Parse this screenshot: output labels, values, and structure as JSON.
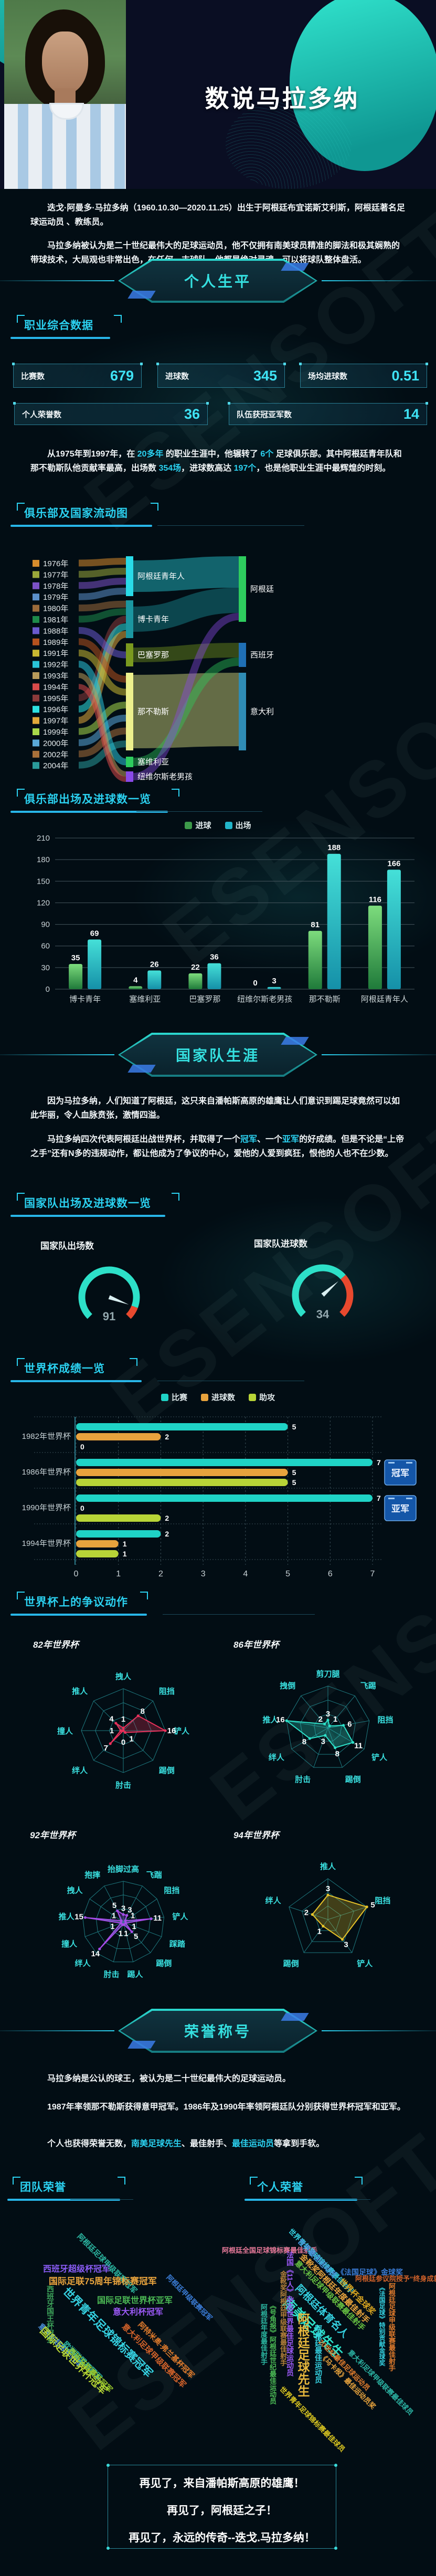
{
  "watermark": "ESENSOFT",
  "header": {
    "title": "数说马拉多纳"
  },
  "intro": {
    "p1": "迭戈·阿曼多·马拉多纳（1960.10.30—2020.11.25）出生于阿根廷布宜诺斯艾利斯，阿根廷著名足球运动员 、教练员。",
    "p2": "马拉多纳被认为是二十世纪最伟大的足球运动员，他不仅拥有南美球员精准的脚法和极其娴熟的带球技术，大局观也非常出色，在任何一支球队，他都是绝对灵魂，可以将球队整体盘活。"
  },
  "banners": {
    "personal": "个人生平",
    "national": "国家队生涯",
    "honors": "荣誉称号"
  },
  "sections": {
    "career_stats": "职业综合数据",
    "flow": "俱乐部及国家流动图",
    "club_chart": "俱乐部出场及进球数一览",
    "national_chart": "国家队出场及进球数一览",
    "worldcup_chart": "世界杯成绩一览",
    "fouls_chart": "世界杯上的争议动作",
    "team_honors": "团队荣誉",
    "personal_honors": "个人荣誉"
  },
  "stat_cards": [
    {
      "label": "比赛数",
      "value": "679"
    },
    {
      "label": "进球数",
      "value": "345"
    },
    {
      "label": "场均进球数",
      "value": "0.51"
    },
    {
      "label": "个人荣誉数",
      "value": "36"
    },
    {
      "label": "队伍获冠亚军数",
      "value": "14"
    }
  ],
  "career_text": {
    "s1": "从1975年到1997年，在 ",
    "h1": "20多年",
    "s2": " 的职业生涯中，他辗转了 ",
    "h2": "6个",
    "s3": " 足球俱乐部。其中阿根廷青年队和那不勒斯队他贡献率最高，出场数 ",
    "h3": "354场",
    "s4": "，进球数高达 ",
    "h4": "197个",
    "s5": "，也是他职业生涯中最辉煌的时刻。"
  },
  "national_text": {
    "p1": "因为马拉多纳，人们知道了阿根廷，这只来自潘帕斯高原的雄鹰让人们意识到踢足球竟然可以如此华丽，令人血脉贲张，激情四溢。",
    "p2s1": "马拉多纳四次代表阿根廷出战世界杯，并取得了一个",
    "p2h1": "冠军",
    "p2s2": "、一个",
    "p2h2": "亚军",
    "p2s3": "的好成绩。但是不论是“上帝之手”还有N多的违规动作，都让他成为了争议的中心，爱他的人爱到疯狂，恨他的人也不在少数。"
  },
  "honors_text": {
    "p1": "马拉多纳是公认的球王，被认为是二十世纪最伟大的足球运动员。",
    "p2": "1987年率领那不勒斯获得意甲冠军。1986年及1990年率领阿根廷队分别获得世界杯冠军和亚军。",
    "p3s1": "个人也获得荣誉无数，",
    "p3h1": "南美足球先生",
    "p3s2": "、最佳射手、",
    "p3h2": "最佳运动员",
    "p3s3": "等拿到手软。"
  },
  "footer": {
    "line1": "再见了，来自潘帕斯高原的雄鹰！",
    "line2": "再见了，阿根廷之子！",
    "line3": "再见了，永远的传奇--迭戈.马拉多纳！"
  },
  "chart_data": [
    {
      "id": "flow-sankey",
      "type": "sankey",
      "title": "俱乐部及国家流动图",
      "years": [
        {
          "label": "1976年",
          "color": "#d78b2c",
          "club": "阿根廷青年人"
        },
        {
          "label": "1977年",
          "color": "#9aa83a",
          "club": "阿根廷青年人"
        },
        {
          "label": "1978年",
          "color": "#7b52c7",
          "club": "阿根廷青年人"
        },
        {
          "label": "1979年",
          "color": "#5b8fc9",
          "club": "阿根廷青年人"
        },
        {
          "label": "1980年",
          "color": "#9a6a3a",
          "club": "博卡青年"
        },
        {
          "label": "1981年",
          "color": "#1e8a4a",
          "club": "博卡青年"
        },
        {
          "label": "1988年",
          "color": "#6a5acd",
          "club": "巴塞罗那"
        },
        {
          "label": "1989年",
          "color": "#b5521e",
          "club": "那不勒斯"
        },
        {
          "label": "1991年",
          "color": "#c9b832",
          "club": "那不勒斯"
        },
        {
          "label": "1992年",
          "color": "#29c4d8",
          "club": "塞维利亚"
        },
        {
          "label": "1993年",
          "color": "#b89a5a",
          "club": "纽维尔斯老男孩"
        },
        {
          "label": "1994年",
          "color": "#d84a4a",
          "club": "纽维尔斯老男孩"
        },
        {
          "label": "1995年",
          "color": "#8a3a3a",
          "club": "博卡青年"
        },
        {
          "label": "1996年",
          "color": "#2ee0e0",
          "club": "博卡青年"
        },
        {
          "label": "1997年",
          "color": "#e0a83a",
          "club": "博卡青年"
        },
        {
          "label": "1999年",
          "color": "#a8d84a",
          "club": "那不勒斯"
        },
        {
          "label": "2000年",
          "color": "#5aa8d8",
          "club": "那不勒斯"
        },
        {
          "label": "2002年",
          "color": "#a8703a",
          "club": "那不勒斯"
        },
        {
          "label": "2004年",
          "color": "#2a9a9a",
          "club": "那不勒斯"
        }
      ],
      "clubs": [
        {
          "name": "阿根廷青年人",
          "color": "#29dbe8",
          "country": "阿根廷",
          "y": 1060,
          "h": 76,
          "lw": 60
        },
        {
          "name": "博卡青年",
          "color": "#1b96a0",
          "country": "阿根廷",
          "y": 1144,
          "h": 72,
          "lw": 48
        },
        {
          "name": "巴塞罗那",
          "color": "#7a9a1f",
          "country": "西班牙",
          "y": 1226,
          "h": 44,
          "lw": 28
        },
        {
          "name": "那不勒斯",
          "color": "#edf08d",
          "country": "意大利",
          "y": 1282,
          "h": 148,
          "lw": 140
        },
        {
          "name": "塞维利亚",
          "color": "#2ecc5e",
          "country": "西班牙",
          "y": 1442,
          "h": 20,
          "lw": 16
        },
        {
          "name": "纽维尔斯老男孩",
          "color": "#8a4ae8",
          "country": "阿根廷",
          "y": 1470,
          "h": 20,
          "lw": 14
        }
      ],
      "countries": [
        {
          "name": "阿根廷",
          "color": "#2ecc5e",
          "y": 1060,
          "h": 125
        },
        {
          "name": "西班牙",
          "color": "#1f6fb5",
          "y": 1225,
          "h": 46
        },
        {
          "name": "意大利",
          "color": "#2f8cb5",
          "y": 1282,
          "h": 148
        }
      ]
    },
    {
      "id": "club-bar",
      "type": "bar",
      "title": "俱乐部出场及进球数一览",
      "categories": [
        "博卡青年",
        "塞维利亚",
        "巴塞罗那",
        "纽维尔斯老男孩",
        "那不勒斯",
        "阿根廷青年人"
      ],
      "series": [
        {
          "name": "进球",
          "color": "#4db84d",
          "values": [
            35,
            4,
            22,
            0,
            81,
            116
          ]
        },
        {
          "name": "出场",
          "color": "#2bc9d6",
          "values": [
            69,
            26,
            36,
            3,
            188,
            166
          ]
        }
      ],
      "ylim": [
        0,
        210
      ],
      "ytick": 30,
      "grid": true,
      "legend_position": "top"
    },
    {
      "id": "gauge-caps",
      "type": "gauge",
      "label": "国家队出场数",
      "value": 91,
      "max": 100
    },
    {
      "id": "gauge-goals",
      "type": "gauge",
      "label": "国家队进球数",
      "value": 34,
      "max": 50
    },
    {
      "id": "wc-bar",
      "type": "bar-horizontal",
      "title": "世界杯成绩一览",
      "categories": [
        "1982年世界杯",
        "1986年世界杯",
        "1990年世界杯",
        "1994年世界杯"
      ],
      "series": [
        {
          "name": "比赛",
          "color": "#1fd3c6",
          "values": [
            5,
            7,
            7,
            2
          ]
        },
        {
          "name": "进球数",
          "color": "#e8a33d",
          "values": [
            2,
            5,
            0,
            1
          ]
        },
        {
          "name": "助攻",
          "color": "#b8d437",
          "values": [
            0,
            5,
            2,
            1
          ]
        }
      ],
      "xlim": [
        0,
        7
      ],
      "legend_position": "top",
      "badges": [
        {
          "row": 1,
          "label": "冠军"
        },
        {
          "row": 2,
          "label": "亚军"
        }
      ]
    },
    {
      "id": "radar-82",
      "type": "radar",
      "title": "82年世界杯",
      "color": "#e8315b",
      "max": 16,
      "axes": [
        "拽人",
        "阻挡",
        "铲人",
        "踢倒",
        "肘击",
        "绊人",
        "撞人",
        "推人"
      ],
      "values": [
        1,
        8,
        16,
        1,
        0,
        7,
        1,
        4
      ]
    },
    {
      "id": "radar-86",
      "type": "radar",
      "title": "86年世界杯",
      "color": "#2de0c8",
      "max": 16,
      "axes": [
        "剪刀腿",
        "飞踢",
        "阻挡",
        "铲人",
        "踢倒",
        "肘击",
        "绊人",
        "推人",
        "拽倒"
      ],
      "values": [
        3,
        1,
        6,
        11,
        8,
        3,
        8,
        16,
        2
      ]
    },
    {
      "id": "radar-92",
      "type": "radar",
      "title": "92年世界杯",
      "color": "#a64ce8",
      "max": 16,
      "axes": [
        "抬脚过高",
        "飞踹",
        "阻挡",
        "铲人",
        "踩踏",
        "踢倒",
        "踢人",
        "肘击",
        "绊人",
        "撞人",
        "推人",
        "拽人",
        "抱摔"
      ],
      "values": [
        3,
        3,
        1,
        11,
        1,
        5,
        1,
        1,
        14,
        1,
        15,
        1,
        5
      ]
    },
    {
      "id": "radar-94",
      "type": "radar",
      "title": "94年世界杯",
      "color": "#e6c229",
      "max": 5,
      "axes": [
        "推人",
        "阻挡",
        "铲人",
        "踢倒",
        "绊人"
      ],
      "values": [
        3,
        5,
        3,
        1,
        2
      ]
    },
    {
      "id": "cloud-team",
      "type": "wordcloud",
      "items": [
        {
          "text": "西班牙超级杯冠军",
          "color": "#8a5cf5",
          "size": 16,
          "rot": 0,
          "x": 72,
          "y": 70
        },
        {
          "text": "阿根廷足球甲级联赛冠军",
          "color": "#2bb5a0",
          "size": 14,
          "rot": 45,
          "x": 147,
          "y": 12
        },
        {
          "text": "国际足联75周年锦标赛冠军",
          "color": "#e8a33d",
          "size": 17,
          "rot": 0,
          "x": 83,
          "y": 93
        },
        {
          "text": "阿根廷甲级联赛冠军",
          "color": "#3a7bd5",
          "size": 13,
          "rot": 45,
          "x": 317,
          "y": 90
        },
        {
          "text": "西班牙国王杯冠军",
          "color": "#3da35a",
          "size": 14,
          "rot": 90,
          "x": 76,
          "y": 115
        },
        {
          "text": "世界青年足球锦标赛冠军",
          "color": "#35d0e0",
          "size": 21,
          "rot": 45,
          "x": 125,
          "y": 112
        },
        {
          "text": "国际足联世界杯亚军",
          "color": "#4cba55",
          "size": 16,
          "rot": 0,
          "x": 175,
          "y": 130
        },
        {
          "text": "意大利杯冠军",
          "color": "#9b59f5",
          "size": 16,
          "rot": 0,
          "x": 205,
          "y": 152
        },
        {
          "text": "意大利超级杯冠军",
          "color": "#4a90d9",
          "size": 14,
          "rot": 45,
          "x": 73,
          "y": 183
        },
        {
          "text": "国际足联世界杯冠军",
          "color": "#b5d433",
          "size": 19,
          "rot": 45,
          "x": 80,
          "y": 188
        },
        {
          "text": "欧洲联盟杯冠军",
          "color": "#2bb3a3",
          "size": 14,
          "rot": 45,
          "x": 120,
          "y": 217
        },
        {
          "text": "西班牙联赛杯冠军",
          "color": "#9ac92c",
          "size": 14,
          "rot": 45,
          "x": 130,
          "y": 230
        },
        {
          "text": "意大利足球甲级联赛冠军",
          "color": "#d2622a",
          "size": 15,
          "rot": 45,
          "x": 233,
          "y": 183
        },
        {
          "text": "阿特米奥-弗兰基杯冠军",
          "color": "#e07b2c",
          "size": 14,
          "rot": 45,
          "x": 263,
          "y": 180
        }
      ]
    },
    {
      "id": "cloud-personal",
      "type": "wordcloud",
      "items": [
        {
          "text": "阿根廷全国足球锦标赛最佳射手",
          "color": "#e87a9a",
          "size": 13,
          "rot": 0,
          "x": 8,
          "y": 38
        },
        {
          "text": "世界青年足球锦标赛最佳射手",
          "color": "#35d0e0",
          "size": 13,
          "rot": 45,
          "x": 145,
          "y": 2
        },
        {
          "text": "世界最佳运动员",
          "color": "#4a90d9",
          "size": 14,
          "rot": 45,
          "x": 162,
          "y": 22
        },
        {
          "text": "金靴奖阿根廷年度最佳射手",
          "color": "#e8a33d",
          "size": 15,
          "rot": 45,
          "x": 167,
          "y": 50
        },
        {
          "text": "《法国足球》金球奖",
          "color": "#3a7bd5",
          "size": 14,
          "rot": 0,
          "x": 227,
          "y": 80
        },
        {
          "text": "阿根廷参议院授予“终身成就奖”",
          "color": "#d2622a",
          "size": 13,
          "rot": 0,
          "x": 262,
          "y": 92
        },
        {
          "text": "世界杯金球奖",
          "color": "#d9a520",
          "size": 15,
          "rot": 45,
          "x": 242,
          "y": 97
        },
        {
          "text": "意大利足球甲级联赛最佳射手",
          "color": "#68c242",
          "size": 14,
          "rot": 45,
          "x": 157,
          "y": 63
        },
        {
          "text": "阿根廷体育名人",
          "color": "#35d0e0",
          "size": 19,
          "rot": 45,
          "x": 162,
          "y": 107
        },
        {
          "text": "南美足球先生",
          "color": "#2de0c8",
          "size": 25,
          "rot": 45,
          "x": 142,
          "y": 130
        },
        {
          "text": "阿根廷足球先生",
          "color": "#e8b83d",
          "size": 23,
          "rot": 90,
          "x": 145,
          "y": 167
        },
        {
          "text": "法国《11人》杂志世界最佳足球运动员",
          "color": "#9b59f5",
          "size": 14,
          "rot": 90,
          "x": 128,
          "y": 50
        },
        {
          "text": "金靴奖阿根廷甲级联赛最佳射手",
          "color": "#b5803a",
          "size": 13,
          "rot": 90,
          "x": 115,
          "y": 87
        },
        {
          "text": "《号角报》阿根廷世纪最佳运动员",
          "color": "#4cba55",
          "size": 13,
          "rot": 90,
          "x": 95,
          "y": 147
        },
        {
          "text": "阿根廷年度最佳射手",
          "color": "#2bb5a0",
          "size": 13,
          "rot": 90,
          "x": 78,
          "y": 150
        },
        {
          "text": "阿根廷最佳运动员",
          "color": "#35d0e0",
          "size": 14,
          "rot": 90,
          "x": 182,
          "y": 190
        },
        {
          "text": "20世纪最佳足球运动员",
          "color": "#e07b2c",
          "size": 13,
          "rot": 45,
          "x": 202,
          "y": 213
        },
        {
          "text": "《马卡报》最佳运动员奖",
          "color": "#e8a33d",
          "size": 13,
          "rot": 45,
          "x": 205,
          "y": 240
        },
        {
          "text": "意大利足球甲级联赛最佳球员",
          "color": "#2bb3a3",
          "size": 13,
          "rot": 45,
          "x": 258,
          "y": 233
        },
        {
          "text": "《法国足球》特别贡献金球奖",
          "color": "#35d0e0",
          "size": 12,
          "rot": 90,
          "x": 305,
          "y": 113
        },
        {
          "text": "阿根廷足球甲级联赛最佳射手",
          "color": "#e07b2c",
          "size": 13,
          "rot": 90,
          "x": 322,
          "y": 110
        },
        {
          "text": "世界青年足球锦标赛最佳球员",
          "color": "#d9c520",
          "size": 13,
          "rot": 45,
          "x": 128,
          "y": 303
        }
      ]
    }
  ]
}
